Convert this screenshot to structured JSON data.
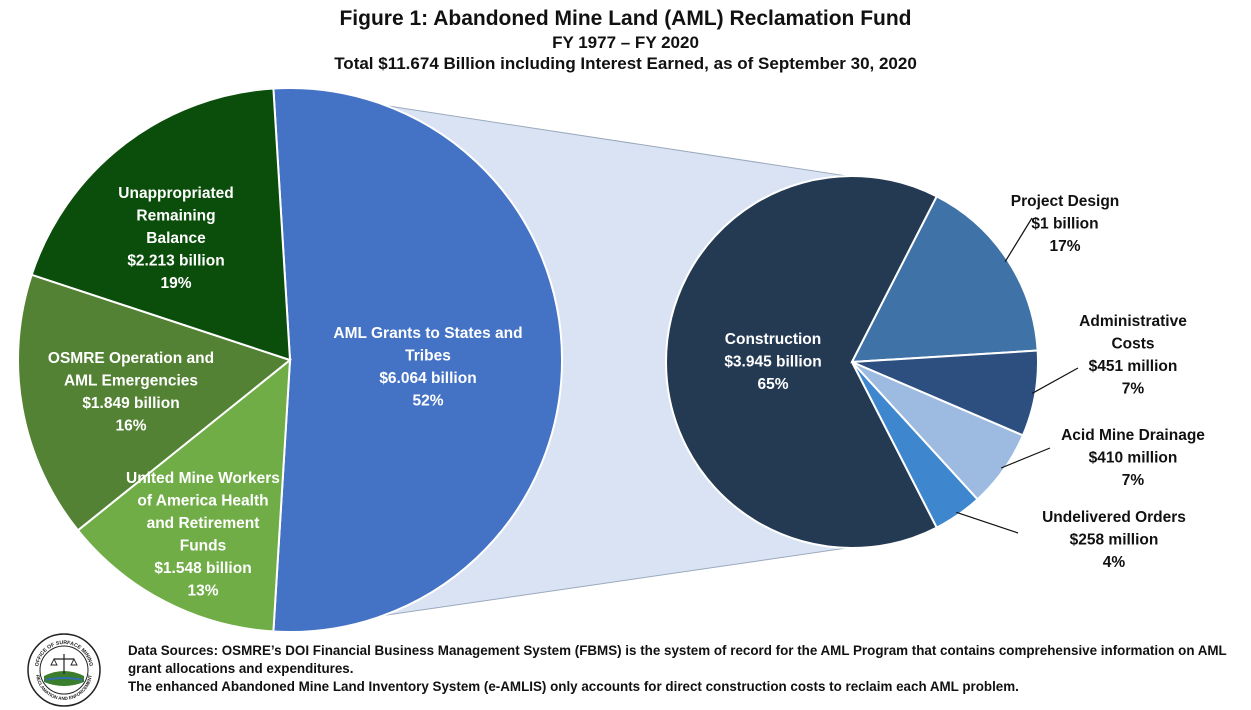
{
  "title": "Figure 1: Abandoned Mine Land (AML) Reclamation Fund",
  "subtitle": "FY 1977 – FY 2020",
  "subtitle2": "Total $11.674 Billion including Interest Earned, as of September 30, 2020",
  "chart_data": [
    {
      "type": "pie",
      "title": "Figure 1: Abandoned Mine Land (AML) Reclamation Fund",
      "unit": "billion",
      "slices": [
        {
          "label": "AML Grants to States and Tribes",
          "value_text": "$6.064 billion",
          "value": 6.064,
          "percent": 52,
          "percent_text": "52%",
          "color": "#4472c4"
        },
        {
          "label": "United Mine Workers of America Health and Retirement Funds",
          "value_text": "$1.548 billion",
          "value": 1.548,
          "percent": 13,
          "percent_text": "13%",
          "color": "#70ad47"
        },
        {
          "label": "OSMRE Operation and AML Emergencies",
          "value_text": "$1.849 billion",
          "value": 1.849,
          "percent": 16,
          "percent_text": "16%",
          "color": "#548235"
        },
        {
          "label": "Unappropriated Remaining Balance",
          "value_text": "$2.213 billion",
          "value": 2.213,
          "percent": 19,
          "percent_text": "19%",
          "color": "#0b4e0b"
        }
      ]
    },
    {
      "type": "pie",
      "breakdown_of": "AML Grants to States and Tribes",
      "slices": [
        {
          "label": "Construction",
          "value_text": "$3.945 billion",
          "value": 3.945,
          "percent": 65,
          "percent_text": "65%",
          "color": "#243a52"
        },
        {
          "label": "Project Design",
          "value_text": "$1 billion",
          "value": 1.0,
          "percent": 17,
          "percent_text": "17%",
          "color": "#3f72a6"
        },
        {
          "label": "Administrative Costs",
          "value_text": "$451 million",
          "value": 0.451,
          "percent": 7,
          "percent_text": "7%",
          "color": "#2c4f80"
        },
        {
          "label": "Acid Mine Drainage",
          "value_text": "$410 million",
          "value": 0.41,
          "percent": 7,
          "percent_text": "7%",
          "color": "#9dbbe0"
        },
        {
          "label": "Undelivered Orders",
          "value_text": "$258 million",
          "value": 0.258,
          "percent": 4,
          "percent_text": "4%",
          "color": "#3e87cf"
        }
      ]
    }
  ],
  "footer": {
    "line1": "Data Sources: OSMRE’s DOI Financial Business Management System (FBMS) is the system of record for the AML Program that contains comprehensive information on AML grant allocations and expenditures.",
    "line2": "The enhanced Abandoned Mine Land Inventory System (e-AMLIS) only accounts for direct construction costs to reclaim each AML problem."
  },
  "logo": {
    "text_top": "OFFICE OF SURFACE MINING",
    "text_bottom": "RECLAMATION AND ENFORCEMENT"
  }
}
